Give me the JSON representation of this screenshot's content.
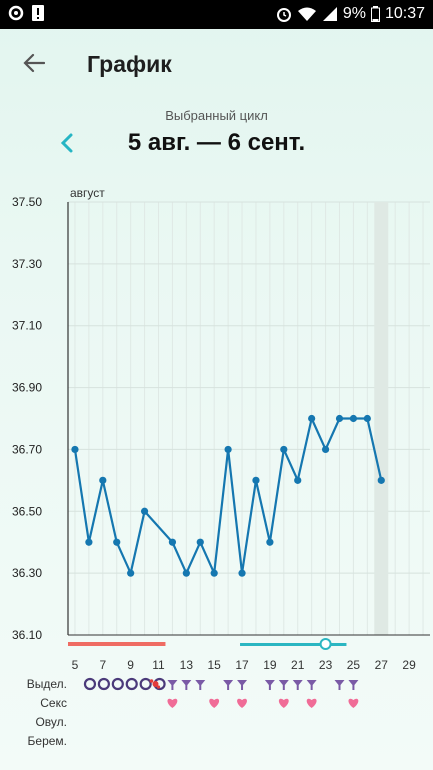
{
  "status": {
    "battery": "9%",
    "time": "10:37"
  },
  "header": {
    "title": "График"
  },
  "cycle": {
    "caption": "Выбранный цикл",
    "range": "5 авг. — 6 сент."
  },
  "colors": {
    "accent": "#26b5c4",
    "line": "#1577b0",
    "period": "#ef6b63",
    "ovulation": "#2bb6c2",
    "sex": "#f06c97",
    "discharge": "#7a5aa6",
    "today": "#dfe9e4"
  },
  "chart_data": {
    "type": "line",
    "month_label": "август",
    "y_ticks": [
      "37.50",
      "37.30",
      "37.10",
      "36.90",
      "36.70",
      "36.50",
      "36.30",
      "36.10"
    ],
    "ylim": [
      36.1,
      37.5
    ],
    "x_ticks": [
      "5",
      "7",
      "9",
      "11",
      "13",
      "15",
      "17",
      "19",
      "21",
      "23",
      "25",
      "27",
      "29"
    ],
    "xlim": [
      4.5,
      30.5
    ],
    "series": [
      {
        "x": [
          5,
          6,
          7,
          8,
          9,
          10,
          12,
          13,
          14,
          15,
          16,
          17,
          18,
          19,
          20,
          21,
          22,
          23,
          24,
          25,
          26,
          27
        ],
        "y": [
          36.7,
          36.4,
          36.6,
          36.4,
          36.3,
          36.5,
          36.4,
          36.3,
          36.4,
          36.3,
          36.7,
          36.3,
          36.6,
          36.4,
          36.7,
          36.6,
          36.8,
          36.7,
          36.8,
          36.8,
          36.8,
          36.6
        ]
      }
    ],
    "highlight_day": 27,
    "period_range": [
      5,
      11
    ],
    "fertile_range": [
      17,
      24
    ],
    "ovulation_day": 23
  },
  "rows": {
    "labels": [
      "Выдел.",
      "Секс",
      "Овул.",
      "Берем."
    ],
    "discharge_circles": [
      5,
      6,
      7,
      8,
      9,
      10
    ],
    "discharge_blood": [
      11
    ],
    "discharge_drops": [
      12,
      13,
      14,
      16,
      17,
      19,
      20,
      21,
      22,
      24,
      25
    ],
    "sex_days": [
      12,
      15,
      17,
      20,
      22,
      25
    ]
  }
}
